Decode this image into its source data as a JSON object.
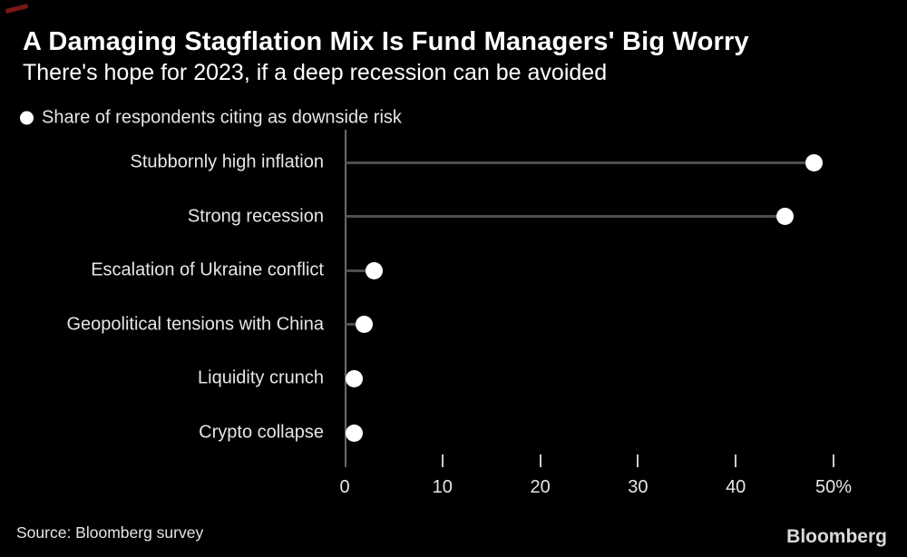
{
  "colors": {
    "background": "#000000",
    "text": "#ffffff",
    "muted_text": "#e6e6e6",
    "axis": "#6a6a6a",
    "tick": "#cccccc",
    "stem": "#4d4d4d",
    "dot": "#ffffff",
    "corner_mark": "#7a1717"
  },
  "header": {
    "title": "A Damaging Stagflation Mix Is Fund Managers' Big Worry",
    "subtitle": "There's hope for 2023, if a deep recession can be avoided"
  },
  "legend": {
    "marker": "dot-icon",
    "label": "Share of respondents citing as downside risk"
  },
  "chart_data": {
    "type": "scatter",
    "variant": "lollipop-dot",
    "orientation": "horizontal",
    "title": "A Damaging Stagflation Mix Is Fund Managers' Big Worry",
    "subtitle": "There's hope for 2023, if a deep recession can be avoided",
    "series_label": "Share of respondents citing as downside risk",
    "categories": [
      "Stubbornly high inflation",
      "Strong recession",
      "Escalation of Ukraine conflict",
      "Geopolitical tensions with China",
      "Liquidity crunch",
      "Crypto collapse"
    ],
    "values": [
      48,
      45,
      3,
      2,
      1,
      1
    ],
    "unit": "%",
    "xlim": [
      0,
      50
    ],
    "xticks": [
      0,
      10,
      20,
      30,
      40,
      50
    ],
    "xtick_labels": [
      "0",
      "10",
      "20",
      "30",
      "40",
      "50%"
    ],
    "grid": false,
    "legend_position": "top-left"
  },
  "footer": {
    "source": "Source: Bloomberg survey",
    "brand": "Bloomberg"
  }
}
